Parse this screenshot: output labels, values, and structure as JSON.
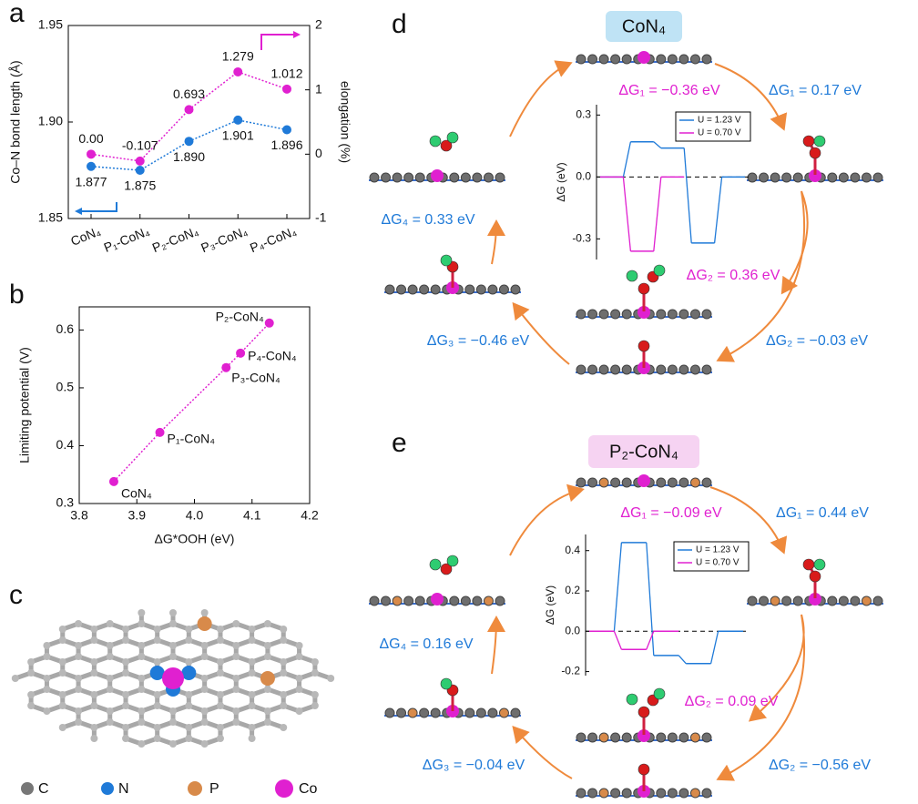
{
  "panel_labels": [
    "a",
    "b",
    "c",
    "d",
    "e"
  ],
  "chart_data": [
    {
      "type": "line",
      "categories": [
        "CoN₄",
        "P₁-CoN₄",
        "P₂-CoN₄",
        "P₃-CoN₄",
        "P₄-CoN₄"
      ],
      "ylabel": "Co–N bond length (Å)",
      "y2label": "elongation (%)",
      "ylim": [
        1.85,
        1.95
      ],
      "yticks": [
        1.85,
        {
          "value": 1.9,
          "label": "1.90"
        },
        1.95
      ],
      "y2lim": [
        -1,
        2
      ],
      "y2ticks": [
        -1,
        0,
        1,
        2
      ],
      "series": [
        {
          "color": "#1f7ad8",
          "values": [
            1.877,
            1.875,
            1.89,
            1.901,
            1.896
          ],
          "value_labels": [
            "1.877",
            "1.875",
            "1.890",
            "1.901",
            "1.896"
          ]
        },
        {
          "color": "#e020d0",
          "axis": "y2",
          "values": [
            0,
            -0.107,
            0.693,
            1.279,
            1.012
          ],
          "value_labels": [
            "0.00",
            "-0.107",
            "0.693",
            "1.279",
            "1.012"
          ]
        }
      ]
    },
    {
      "type": "scatter",
      "color": "#e020d0",
      "xlabel": "ΔG*OOH (eV)",
      "ylabel": "Limiting potential (V)",
      "x": [
        3.86,
        3.94,
        4.055,
        4.08,
        4.13
      ],
      "values": [
        0.338,
        0.423,
        0.535,
        0.56,
        0.612
      ],
      "point_labels": [
        "CoN₄",
        "P₁-CoN₄",
        "P₃-CoN₄",
        "P₄-CoN₄",
        "P₂-CoN₄"
      ],
      "xlim": [
        3.8,
        4.2
      ],
      "xticks": [
        3.8,
        3.9,
        {
          "value": 4,
          "label": "4.0"
        },
        4.1,
        4.2
      ],
      "ylim": [
        0.3,
        0.64
      ],
      "yticks": [
        0.3,
        0.4,
        0.5,
        0.6
      ]
    },
    {
      "type": "step",
      "ylabel": "ΔG (eV)",
      "categories": [
        null,
        null,
        null,
        null,
        null
      ],
      "ylim": [
        -0.4,
        0.35
      ],
      "yticks": [
        -0.3,
        {
          "value": 0,
          "label": "0.0"
        },
        0.3
      ],
      "series": [
        {
          "name": "U = 1.23 V",
          "color": "#1f7ad8",
          "values": [
            0,
            0.17,
            0.14,
            -0.32,
            0
          ]
        },
        {
          "name": "U = 0.70 V",
          "color": "#e020d0",
          "values": [
            0,
            -0.36,
            0,
            null,
            null
          ]
        }
      ]
    },
    {
      "type": "step",
      "ylabel": "ΔG (eV)",
      "categories": [
        null,
        null,
        null,
        null,
        null
      ],
      "ylim": [
        -0.22,
        0.48
      ],
      "yticks": [
        -0.2,
        {
          "value": 0,
          "label": "0.0"
        },
        0.2,
        0.4
      ],
      "series": [
        {
          "name": "U = 1.23 V",
          "color": "#1f7ad8",
          "values": [
            0,
            0.44,
            -0.12,
            -0.16,
            0
          ]
        },
        {
          "name": "U = 0.70 V",
          "color": "#e020d0",
          "values": [
            0,
            -0.09,
            0,
            null,
            null
          ]
        }
      ]
    }
  ],
  "cycle_d": {
    "title": "CoN₄",
    "labels": [
      "ΔG₁ = −0.36 eV",
      "ΔG₁ = 0.17 eV",
      "ΔG₄ = 0.33 eV",
      "ΔG₂ = 0.36 eV",
      "ΔG₃ = −0.46 eV",
      "ΔG₂ = −0.03 eV"
    ]
  },
  "cycle_e": {
    "title": "P₂-CoN₄",
    "labels": [
      "ΔG₁ = −0.09 eV",
      "ΔG₁ = 0.44 eV",
      "ΔG₄ = 0.16 eV",
      "ΔG₂ = 0.09 eV",
      "ΔG₃ = −0.04 eV",
      "ΔG₂ = −0.56 eV"
    ]
  },
  "atom_legend": [
    "C",
    "N",
    "P",
    "Co"
  ]
}
